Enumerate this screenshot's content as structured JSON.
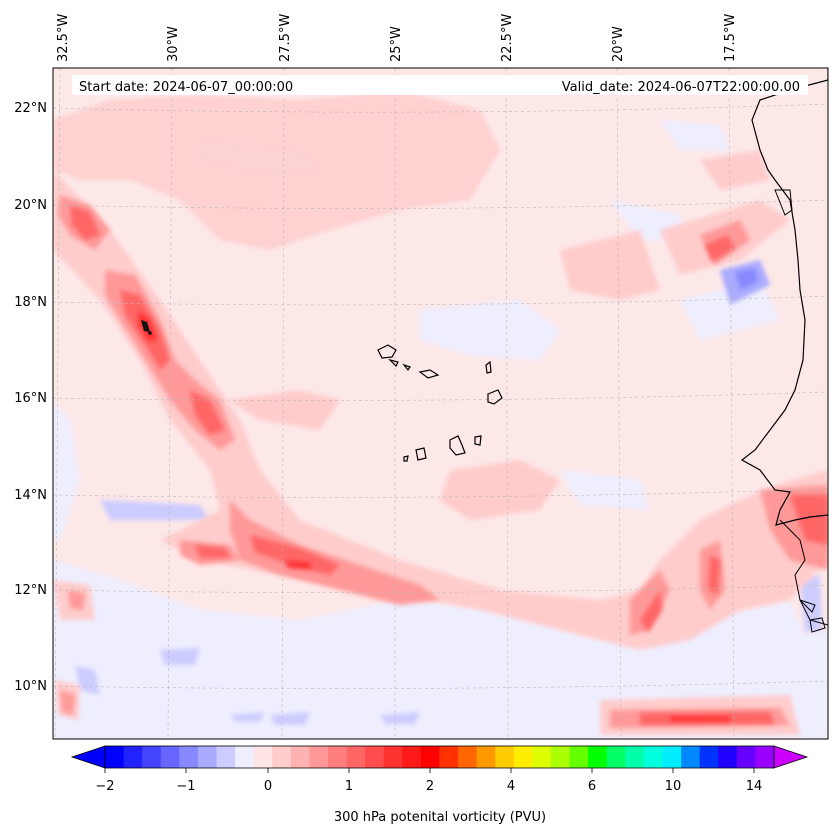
{
  "header": {
    "start_date": "Start date: 2024-06-07_00:00:00",
    "valid_date": "Valid_date: 2024-06-07T22:00:00.00"
  },
  "axes": {
    "lon_labels": [
      "32.5°W",
      "30°W",
      "27.5°W",
      "25°W",
      "22.5°W",
      "20°W",
      "17.5°W"
    ],
    "lat_labels": [
      "22°N",
      "20°N",
      "18°N",
      "16°N",
      "14°N",
      "12°N",
      "10°N"
    ]
  },
  "colorbar": {
    "title": "300 hPa potenital vorticity (PVU)",
    "tick_labels": [
      "−2",
      "−1",
      "0",
      "1",
      "2",
      "4",
      "6",
      "10",
      "14"
    ],
    "colors": [
      "#0000ff",
      "#2222ff",
      "#4444ff",
      "#6666ff",
      "#8888ff",
      "#aaaaff",
      "#ccccff",
      "#eeeeff",
      "#ffe5e5",
      "#ffcccc",
      "#ffb2b2",
      "#ff9999",
      "#ff7f7f",
      "#ff6666",
      "#ff4c4c",
      "#ff3232",
      "#ff1919",
      "#ff0000",
      "#ff3300",
      "#ff6600",
      "#ff9900",
      "#ffcc00",
      "#ffee00",
      "#ddff00",
      "#aaff00",
      "#66ff00",
      "#00ff00",
      "#00ff66",
      "#00ffaa",
      "#00ffdd",
      "#00eeff",
      "#0088ff",
      "#0033ff",
      "#2200ff",
      "#6600ff",
      "#9900ff"
    ],
    "extend_min_color": "#0000ff",
    "extend_max_color": "#cc00ff"
  },
  "colors": {
    "background_pv": "#fde8e8",
    "weak_pos": "#ffcccc",
    "mod_pos": "#ff9999",
    "strong_pos": "#ff5555",
    "weak_neg": "#e8e8ff",
    "mod_neg": "#b8b8ff"
  }
}
